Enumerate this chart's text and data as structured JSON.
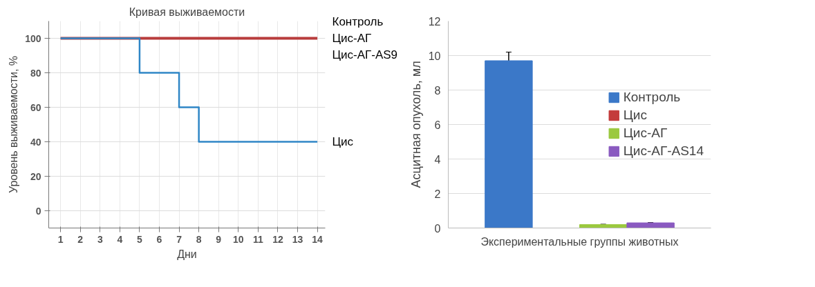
{
  "chart_data": [
    {
      "type": "step",
      "title": "Кривая выживаемости",
      "xlabel": "Дни",
      "ylabel": "Уровень выживаемости, %",
      "x": [
        1,
        2,
        3,
        4,
        5,
        6,
        7,
        8,
        9,
        10,
        11,
        12,
        13,
        14
      ],
      "series": [
        {
          "name": "Цис-АГ",
          "color": "#b83c3c",
          "values": [
            100,
            100,
            100,
            100,
            100,
            100,
            100,
            100,
            100,
            100,
            100,
            100,
            100,
            100
          ]
        },
        {
          "name": "Цис",
          "color": "#2f86c6",
          "values": [
            100,
            100,
            100,
            100,
            80,
            80,
            60,
            40,
            40,
            40,
            40,
            40,
            40,
            40
          ]
        }
      ],
      "annotations": [
        {
          "text": "Контроль",
          "x": 14,
          "y": 100
        },
        {
          "text": "Цис-АГ-AS9",
          "x": 14,
          "y": 100
        }
      ],
      "xlim": [
        0.4,
        14.4
      ],
      "ylim": [
        -10,
        110
      ],
      "xticks": [
        1,
        2,
        3,
        4,
        5,
        6,
        7,
        8,
        9,
        10,
        11,
        12,
        13,
        14
      ],
      "yticks": [
        0,
        20,
        40,
        60,
        80,
        100
      ],
      "grid": true
    },
    {
      "type": "bar",
      "xlabel": "Экспериментальные группы животных",
      "ylabel": "Асцитная опухоль, мл",
      "categories": [
        null
      ],
      "series": [
        {
          "name": "Контроль",
          "color": "#3b78c8",
          "values": [
            9.7
          ],
          "errors": [
            0.5
          ]
        },
        {
          "name": "Цис",
          "color": "#c43b3b",
          "values": [
            null
          ]
        },
        {
          "name": "Цис-АГ",
          "color": "#9bc93f",
          "values": [
            0.2
          ],
          "errors": [
            0.02
          ]
        },
        {
          "name": "Цис-АГ-AS14",
          "color": "#8a5ac0",
          "values": [
            0.3
          ],
          "errors": [
            0.02
          ]
        }
      ],
      "ylim": [
        0,
        12
      ],
      "yticks": [
        0,
        2,
        4,
        6,
        8,
        10,
        12
      ],
      "grid": "y",
      "legend": "right"
    }
  ]
}
